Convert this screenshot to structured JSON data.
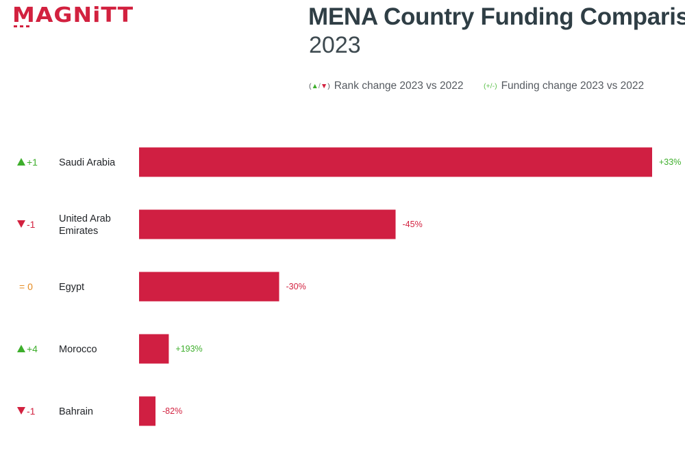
{
  "brand": {
    "logo_text": "MAGNiTT",
    "accent_color": "#d2213f"
  },
  "colors": {
    "bar": "#d01f42",
    "rank_up": "#3dae2b",
    "rank_down": "#d2213f",
    "rank_same": "#e58a1f",
    "change_positive": "#3dae2b",
    "change_negative": "#d2213f"
  },
  "legend": {
    "rank_key_up": "▲",
    "rank_key_sep": "/",
    "rank_key_down": "▼",
    "rank_text": "Rank change 2023 vs 2022",
    "funding_key_plus": "+",
    "funding_key_sep": "/",
    "funding_key_minus": "-",
    "funding_text": "Funding change 2023 vs 2022"
  },
  "chart_data": {
    "type": "bar",
    "orientation": "horizontal",
    "title": "MENA Country Funding Comparison",
    "subtitle": "2023",
    "categories": [
      "Saudi Arabia",
      "United Arab Emirates",
      "Egypt",
      "Morocco",
      "Bahrain"
    ],
    "category_lines": [
      [
        "Saudi Arabia"
      ],
      [
        "United Arab",
        "Emirates"
      ],
      [
        "Egypt"
      ],
      [
        "Morocco"
      ],
      [
        "Bahrain"
      ]
    ],
    "values": [
      100,
      50,
      27.3,
      5.8,
      3.2
    ],
    "value_note": "bar lengths relative (no value axis shown)",
    "xlim": [
      0,
      100
    ],
    "rank_change": [
      {
        "dir": "up",
        "text": "+1"
      },
      {
        "dir": "down",
        "text": "-1"
      },
      {
        "dir": "same",
        "text": "= 0"
      },
      {
        "dir": "up",
        "text": "+4"
      },
      {
        "dir": "down",
        "text": "-1"
      }
    ],
    "funding_change": [
      "+33%",
      "-45%",
      "-30%",
      "+193%",
      "-82%"
    ],
    "grid": false,
    "legend_position": "top-right"
  }
}
